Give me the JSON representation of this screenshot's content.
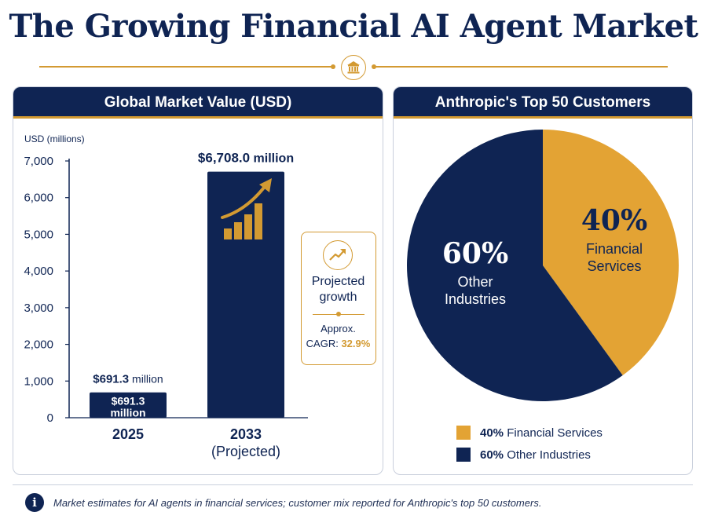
{
  "title": "The Growing Financial AI Agent Market",
  "icons": {
    "header": "bank-building-icon",
    "growth": "trend-up-arrow-icon",
    "bars": "bar-growth-icon",
    "info": "info-icon"
  },
  "colors": {
    "navy": "#0f2453",
    "gold": "#d39a32",
    "pie_gold": "#e3a334"
  },
  "left_panel": {
    "header": "Global Market Value (USD)",
    "growth_box": {
      "title": "Projected growth",
      "approx": "Approx.",
      "cagr_label": "CAGR:",
      "cagr_value": "32.9%"
    }
  },
  "right_panel": {
    "header": "Anthropic's Top 50 Customers"
  },
  "footnote": {
    "icon_text": "i",
    "text": "Market estimates for AI agents in financial services; customer mix reported for Anthropic's top 50 customers."
  },
  "chart_data": [
    {
      "type": "bar",
      "ylabel": "USD (millions)",
      "ylim": [
        0,
        7000
      ],
      "yticks": [
        0,
        1000,
        2000,
        3000,
        4000,
        5000,
        6000,
        7000
      ],
      "ytick_labels": [
        "0",
        "1,000",
        "2,000",
        "3,000",
        "4,000",
        "5,000",
        "6,000",
        "7,000"
      ],
      "categories": [
        "2025",
        "2033 (Projected)"
      ],
      "category_labels": [
        [
          "2025"
        ],
        [
          "2033",
          "(Projected)"
        ]
      ],
      "values": [
        691.3,
        6708.0
      ],
      "top_labels": [
        {
          "amount": "$691.3",
          "unit": " million"
        },
        {
          "amount": "$6,708.0",
          "unit": " million"
        }
      ],
      "inside_labels": [
        [
          "$691.3",
          "million"
        ],
        []
      ]
    },
    {
      "type": "pie",
      "slices": [
        {
          "label": "Financial Services",
          "value": 40,
          "display": "40%",
          "label_lines": [
            "Financial",
            "Services"
          ],
          "legend": "40%",
          "legend_name": "Financial Services",
          "color": "#e3a334"
        },
        {
          "label": "Other Industries",
          "value": 60,
          "display": "60%",
          "label_lines": [
            "Other",
            "Industries"
          ],
          "legend": "60%",
          "legend_name": "Other Industries",
          "color": "#0f2453"
        }
      ]
    }
  ]
}
